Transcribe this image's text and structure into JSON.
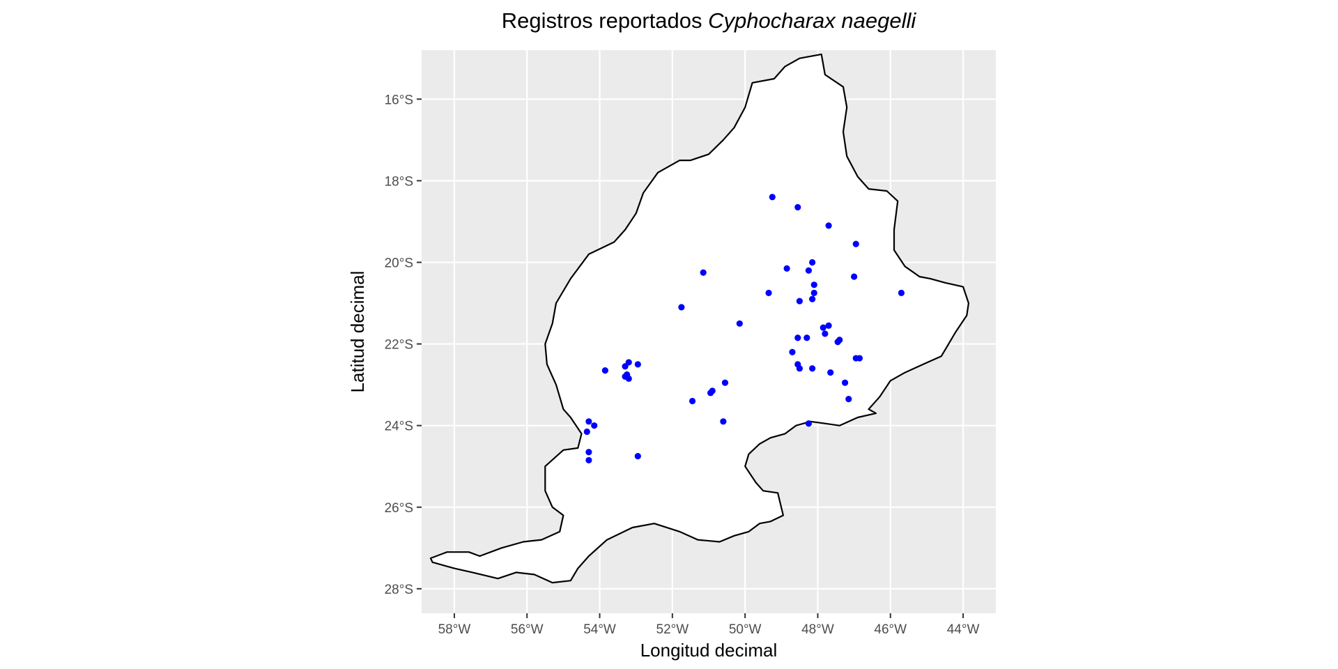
{
  "title": {
    "main": "Registros reportados ",
    "species": "Cyphocharax naegelli"
  },
  "x_axis_label": "Longitud decimal",
  "y_axis_label": "Latitud decimal",
  "colors": {
    "panel_background": "#ebebeb",
    "grid": "#ffffff",
    "basin_fill": "#ffffff",
    "basin_outline": "#000000",
    "points": "#0000ff"
  },
  "chart_data": {
    "type": "scatter",
    "xlim": [
      -58.9,
      -43.1
    ],
    "ylim": [
      -28.6,
      -14.8
    ],
    "x_ticks": [
      {
        "value": -58,
        "label": "58°W"
      },
      {
        "value": -56,
        "label": "56°W"
      },
      {
        "value": -54,
        "label": "54°W"
      },
      {
        "value": -52,
        "label": "52°W"
      },
      {
        "value": -50,
        "label": "50°W"
      },
      {
        "value": -48,
        "label": "48°W"
      },
      {
        "value": -46,
        "label": "46°W"
      },
      {
        "value": -44,
        "label": "44°W"
      }
    ],
    "y_ticks": [
      {
        "value": -16,
        "label": "16°S"
      },
      {
        "value": -18,
        "label": "18°S"
      },
      {
        "value": -20,
        "label": "20°S"
      },
      {
        "value": -22,
        "label": "22°S"
      },
      {
        "value": -24,
        "label": "24°S"
      },
      {
        "value": -26,
        "label": "26°S"
      },
      {
        "value": -28,
        "label": "28°S"
      }
    ],
    "basin_outline": [
      [
        -58.65,
        -27.25
      ],
      [
        -58.2,
        -27.1
      ],
      [
        -57.6,
        -27.1
      ],
      [
        -57.3,
        -27.2
      ],
      [
        -56.7,
        -27.0
      ],
      [
        -56.1,
        -26.85
      ],
      [
        -55.6,
        -26.8
      ],
      [
        -55.1,
        -26.6
      ],
      [
        -55.0,
        -26.2
      ],
      [
        -55.3,
        -26.0
      ],
      [
        -55.5,
        -25.6
      ],
      [
        -55.5,
        -25.0
      ],
      [
        -55.0,
        -24.6
      ],
      [
        -54.6,
        -24.55
      ],
      [
        -54.5,
        -24.2
      ],
      [
        -54.8,
        -23.8
      ],
      [
        -55.0,
        -23.6
      ],
      [
        -55.2,
        -23.0
      ],
      [
        -55.45,
        -22.5
      ],
      [
        -55.5,
        -22.0
      ],
      [
        -55.3,
        -21.5
      ],
      [
        -55.2,
        -21.0
      ],
      [
        -54.8,
        -20.4
      ],
      [
        -54.3,
        -19.8
      ],
      [
        -53.6,
        -19.5
      ],
      [
        -53.3,
        -19.2
      ],
      [
        -53.0,
        -18.8
      ],
      [
        -52.8,
        -18.3
      ],
      [
        -52.4,
        -17.8
      ],
      [
        -51.8,
        -17.5
      ],
      [
        -51.5,
        -17.5
      ],
      [
        -51.0,
        -17.35
      ],
      [
        -50.6,
        -17.0
      ],
      [
        -50.3,
        -16.7
      ],
      [
        -50.0,
        -16.2
      ],
      [
        -49.8,
        -15.6
      ],
      [
        -49.2,
        -15.5
      ],
      [
        -48.9,
        -15.2
      ],
      [
        -48.5,
        -15.0
      ],
      [
        -47.9,
        -14.9
      ],
      [
        -47.8,
        -15.4
      ],
      [
        -47.3,
        -15.7
      ],
      [
        -47.2,
        -16.2
      ],
      [
        -47.3,
        -16.8
      ],
      [
        -47.2,
        -17.4
      ],
      [
        -46.9,
        -17.9
      ],
      [
        -46.6,
        -18.2
      ],
      [
        -46.1,
        -18.25
      ],
      [
        -45.8,
        -18.5
      ],
      [
        -45.9,
        -19.2
      ],
      [
        -45.9,
        -19.7
      ],
      [
        -45.6,
        -20.1
      ],
      [
        -45.2,
        -20.35
      ],
      [
        -44.9,
        -20.4
      ],
      [
        -44.5,
        -20.5
      ],
      [
        -44.0,
        -20.6
      ],
      [
        -43.85,
        -21.0
      ],
      [
        -43.9,
        -21.3
      ],
      [
        -44.2,
        -21.7
      ],
      [
        -44.4,
        -22.0
      ],
      [
        -44.6,
        -22.3
      ],
      [
        -45.1,
        -22.5
      ],
      [
        -45.6,
        -22.7
      ],
      [
        -46.0,
        -22.9
      ],
      [
        -46.3,
        -23.3
      ],
      [
        -46.6,
        -23.6
      ],
      [
        -46.4,
        -23.7
      ],
      [
        -46.9,
        -23.8
      ],
      [
        -47.4,
        -24.0
      ],
      [
        -47.8,
        -23.95
      ],
      [
        -48.2,
        -23.9
      ],
      [
        -48.6,
        -24.0
      ],
      [
        -48.9,
        -24.2
      ],
      [
        -49.3,
        -24.3
      ],
      [
        -49.6,
        -24.45
      ],
      [
        -49.9,
        -24.7
      ],
      [
        -50.0,
        -25.0
      ],
      [
        -49.7,
        -25.4
      ],
      [
        -49.5,
        -25.6
      ],
      [
        -49.1,
        -25.65
      ],
      [
        -48.95,
        -26.2
      ],
      [
        -49.3,
        -26.35
      ],
      [
        -49.6,
        -26.4
      ],
      [
        -49.9,
        -26.6
      ],
      [
        -50.3,
        -26.7
      ],
      [
        -50.7,
        -26.85
      ],
      [
        -51.3,
        -26.8
      ],
      [
        -51.8,
        -26.6
      ],
      [
        -52.5,
        -26.4
      ],
      [
        -53.1,
        -26.5
      ],
      [
        -53.8,
        -26.8
      ],
      [
        -54.3,
        -27.2
      ],
      [
        -54.6,
        -27.5
      ],
      [
        -54.8,
        -27.8
      ],
      [
        -55.3,
        -27.85
      ],
      [
        -55.8,
        -27.65
      ],
      [
        -56.3,
        -27.6
      ],
      [
        -56.8,
        -27.75
      ],
      [
        -57.5,
        -27.6
      ],
      [
        -58.0,
        -27.5
      ],
      [
        -58.6,
        -27.35
      ]
    ],
    "points": [
      [
        -49.25,
        -18.4
      ],
      [
        -48.55,
        -18.65
      ],
      [
        -47.7,
        -19.1
      ],
      [
        -46.95,
        -19.55
      ],
      [
        -48.85,
        -20.15
      ],
      [
        -48.25,
        -20.2
      ],
      [
        -48.15,
        -20.0
      ],
      [
        -51.15,
        -20.25
      ],
      [
        -47.0,
        -20.35
      ],
      [
        -48.1,
        -20.55
      ],
      [
        -49.35,
        -20.75
      ],
      [
        -48.1,
        -20.75
      ],
      [
        -48.5,
        -20.95
      ],
      [
        -48.15,
        -20.9
      ],
      [
        -45.7,
        -20.75
      ],
      [
        -51.75,
        -21.1
      ],
      [
        -50.15,
        -21.5
      ],
      [
        -47.7,
        -21.55
      ],
      [
        -47.85,
        -21.6
      ],
      [
        -47.8,
        -21.75
      ],
      [
        -48.55,
        -21.85
      ],
      [
        -48.3,
        -21.85
      ],
      [
        -47.45,
        -21.95
      ],
      [
        -47.4,
        -21.9
      ],
      [
        -48.7,
        -22.2
      ],
      [
        -48.55,
        -22.5
      ],
      [
        -48.5,
        -22.6
      ],
      [
        -48.15,
        -22.6
      ],
      [
        -47.65,
        -22.7
      ],
      [
        -46.95,
        -22.35
      ],
      [
        -46.85,
        -22.35
      ],
      [
        -47.25,
        -22.95
      ],
      [
        -47.15,
        -23.35
      ],
      [
        -48.25,
        -23.95
      ],
      [
        -53.3,
        -22.55
      ],
      [
        -53.2,
        -22.45
      ],
      [
        -52.95,
        -22.5
      ],
      [
        -53.25,
        -22.75
      ],
      [
        -53.3,
        -22.8
      ],
      [
        -53.2,
        -22.85
      ],
      [
        -53.85,
        -22.65
      ],
      [
        -50.55,
        -22.95
      ],
      [
        -50.95,
        -23.2
      ],
      [
        -50.9,
        -23.15
      ],
      [
        -51.45,
        -23.4
      ],
      [
        -50.6,
        -23.9
      ],
      [
        -54.3,
        -23.9
      ],
      [
        -54.15,
        -24.0
      ],
      [
        -54.35,
        -24.15
      ],
      [
        -54.3,
        -24.65
      ],
      [
        -54.3,
        -24.85
      ],
      [
        -52.95,
        -24.75
      ]
    ]
  }
}
